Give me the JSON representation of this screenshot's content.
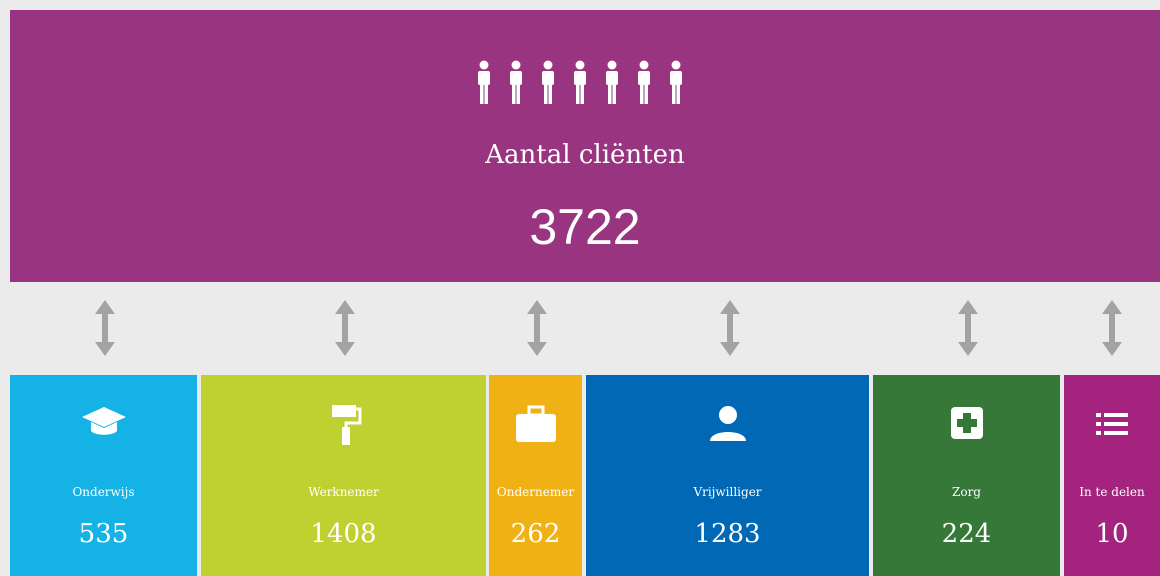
{
  "header": {
    "title": "Aantal cliënten",
    "total": "3722"
  },
  "tiles": [
    {
      "label": "Onderwijs",
      "value": "535"
    },
    {
      "label": "Werknemer",
      "value": "1408"
    },
    {
      "label": "Ondernemer",
      "value": "262"
    },
    {
      "label": "Vrijwilliger",
      "value": "1283"
    },
    {
      "label": "Zorg",
      "value": "224"
    },
    {
      "label": "In te delen",
      "value": "10"
    }
  ]
}
